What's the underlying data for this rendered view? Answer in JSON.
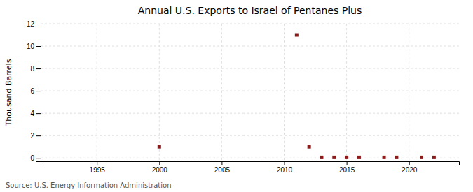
{
  "chart_data": {
    "type": "scatter",
    "title": "Annual U.S. Exports to Israel of Pentanes Plus",
    "y_label": "Thousand Barrels",
    "source": "Source: U.S. Energy Information Administration",
    "x": [
      2000,
      2011,
      2012,
      2013,
      2014,
      2015,
      2016,
      2018,
      2019,
      2021,
      2022
    ],
    "values": [
      1,
      11,
      1,
      0.05,
      0.05,
      0.05,
      0.05,
      0.05,
      0.05,
      0.05,
      0.05
    ],
    "color": "#8b1a1a",
    "marker": "square",
    "xlim": [
      1990.5,
      2024
    ],
    "ylim": [
      -0.3,
      12
    ],
    "xticks": [
      1995,
      2000,
      2005,
      2010,
      2015,
      2020
    ],
    "yticks": [
      0,
      2,
      4,
      6,
      8,
      10,
      12
    ],
    "grid": true
  }
}
